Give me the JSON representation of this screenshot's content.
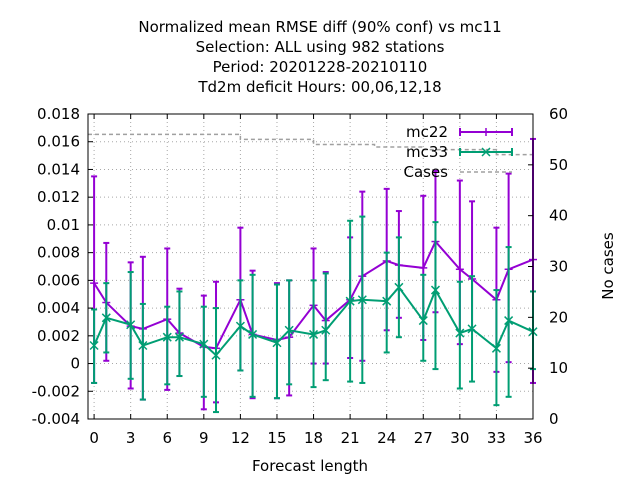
{
  "title_lines": [
    "Normalized mean RMSE diff (90% conf) vs mc11",
    "Selection: ALL using   982 stations",
    "Period: 20201228-20210110",
    "Td2m deficit   Hours:  00,06,12,18"
  ],
  "chart_data": {
    "type": "line",
    "xlabel": "Forecast length",
    "ylabel": "",
    "y2label": "No cases",
    "xlim": [
      -0.5,
      36
    ],
    "ylim": [
      -0.004,
      0.018
    ],
    "y2lim": [
      0,
      60
    ],
    "x_ticks": [
      0,
      3,
      6,
      9,
      12,
      15,
      18,
      21,
      24,
      27,
      30,
      33,
      36
    ],
    "y_ticks": [
      "-0.004",
      "-0.002",
      "0",
      "0.002",
      "0.004",
      "0.006",
      "0.008",
      "0.01",
      "0.012",
      "0.014",
      "0.016",
      "0.018"
    ],
    "y2_ticks": [
      "0",
      "10",
      "20",
      "30",
      "40",
      "50",
      "60"
    ],
    "grid": true,
    "legend_position": "top-right",
    "series": [
      {
        "name": "mc22",
        "color": "#9400d3",
        "x": [
          0,
          1,
          3,
          4,
          6,
          7,
          9,
          10,
          12,
          13,
          15,
          16,
          18,
          19,
          21,
          22,
          24,
          25,
          27,
          28,
          30,
          31,
          33,
          34,
          36
        ],
        "y": [
          0.0058,
          0.0044,
          0.0027,
          0.0025,
          0.0032,
          0.0022,
          0.0012,
          0.0011,
          0.0046,
          0.0021,
          0.0017,
          0.0019,
          0.0042,
          0.0031,
          0.0046,
          0.0063,
          0.0074,
          0.0071,
          0.0069,
          0.0088,
          0.0068,
          0.0061,
          0.0046,
          0.0068,
          0.0075
        ],
        "err_low": [
          -0.0014,
          0.0002,
          -0.0018,
          -0.0026,
          -0.0019,
          -0.0009,
          -0.0033,
          -0.0028,
          -0.0005,
          -0.0025,
          -0.0025,
          -0.0023,
          0,
          0,
          0.0004,
          0.0002,
          0.0024,
          0.0033,
          0.0017,
          0.0037,
          0.0014,
          0.0024,
          -0.0006,
          0.0001,
          -0.0014
        ],
        "err_high": [
          0.0135,
          0.0087,
          0.0073,
          0.0077,
          0.0083,
          0.0054,
          0.0049,
          0.0059,
          0.0098,
          0.0067,
          0.0058,
          0.006,
          0.0083,
          0.0066,
          0.0091,
          0.0124,
          0.0126,
          0.011,
          0.0121,
          0.0139,
          0.0132,
          0.0117,
          0.0098,
          0.0137,
          0.0162
        ]
      },
      {
        "name": "mc33",
        "color": "#009e73",
        "x": [
          0,
          1,
          3,
          4,
          6,
          7,
          9,
          10,
          12,
          13,
          15,
          16,
          18,
          19,
          21,
          22,
          24,
          25,
          27,
          28,
          30,
          31,
          33,
          34,
          36
        ],
        "y": [
          0.0013,
          0.0033,
          0.0028,
          0.0013,
          0.0019,
          0.0019,
          0.0014,
          0.0006,
          0.0027,
          0.0021,
          0.0015,
          0.0024,
          0.0021,
          0.0024,
          0.0045,
          0.0046,
          0.0045,
          0.0055,
          0.0031,
          0.0053,
          0.0022,
          0.0025,
          0.0011,
          0.0031,
          0.0023
        ],
        "err_low": [
          -0.0014,
          0.0008,
          -0.0011,
          -0.0026,
          -0.0015,
          -0.0009,
          -0.0024,
          -0.0035,
          -0.0005,
          -0.0024,
          -0.0025,
          -0.0015,
          -0.0017,
          -0.0012,
          -0.0013,
          -0.0014,
          0.0008,
          0.0019,
          0.0002,
          -0.0004,
          -0.0018,
          -0.0013,
          -0.003,
          -0.0024,
          -0.0004
        ],
        "err_high": [
          0.0039,
          0.0058,
          0.0066,
          0.0043,
          0.0041,
          0.0052,
          0.0041,
          0.004,
          0.006,
          0.0064,
          0.0057,
          0.006,
          0.006,
          0.0065,
          0.0103,
          0.0106,
          0.008,
          0.0091,
          0.0064,
          0.0102,
          0.0059,
          0.0063,
          0.0053,
          0.0084,
          0.0052
        ]
      },
      {
        "name": "Cases",
        "color": "#a0a0a0",
        "axis": "y2",
        "x": [
          -0.5,
          12,
          12,
          18,
          18,
          23,
          23,
          27,
          27,
          33,
          33,
          36
        ],
        "y": [
          56,
          56,
          55,
          55,
          54,
          54,
          53.5,
          53.5,
          53,
          53,
          52,
          52
        ]
      }
    ]
  }
}
